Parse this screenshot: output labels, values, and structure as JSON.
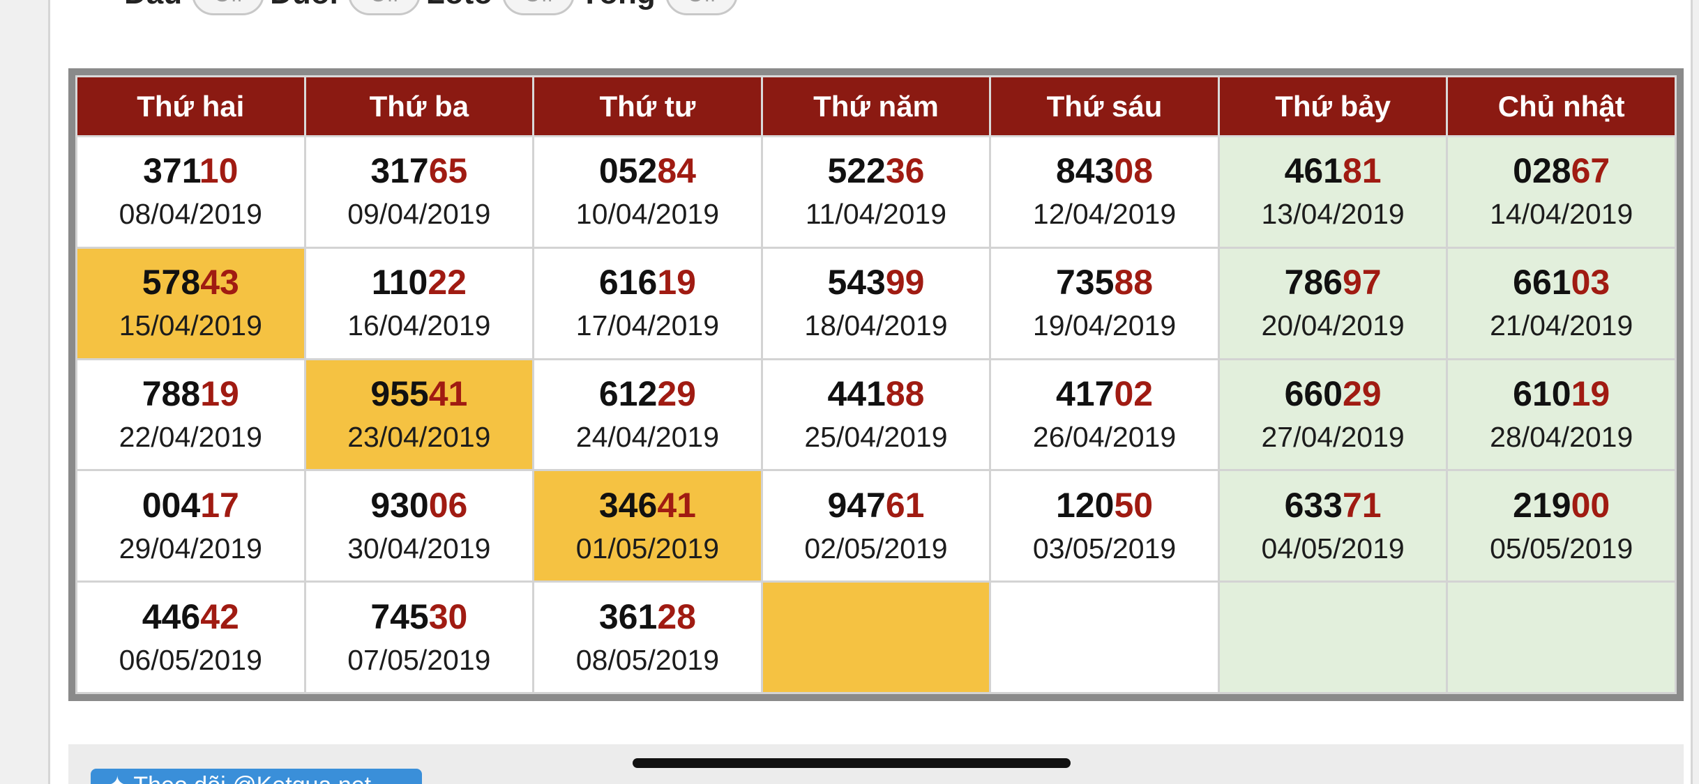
{
  "filters": [
    {
      "label": "Đầu",
      "value": "Off"
    },
    {
      "label": "Đuôi",
      "value": "Off"
    },
    {
      "label": "Loto",
      "value": "Off"
    },
    {
      "label": "Tổng",
      "value": "Off"
    }
  ],
  "calendar": {
    "headers": [
      "Thứ hai",
      "Thứ ba",
      "Thứ tư",
      "Thứ năm",
      "Thứ sáu",
      "Thứ bảy",
      "Chủ nhật"
    ],
    "rows": [
      [
        {
          "prefix": "371",
          "tail": "10",
          "date": "08/04/2019"
        },
        {
          "prefix": "317",
          "tail": "65",
          "date": "09/04/2019"
        },
        {
          "prefix": "052",
          "tail": "84",
          "date": "10/04/2019"
        },
        {
          "prefix": "522",
          "tail": "36",
          "date": "11/04/2019"
        },
        {
          "prefix": "843",
          "tail": "08",
          "date": "12/04/2019"
        },
        {
          "prefix": "461",
          "tail": "81",
          "date": "13/04/2019"
        },
        {
          "prefix": "028",
          "tail": "67",
          "date": "14/04/2019"
        }
      ],
      [
        {
          "prefix": "578",
          "tail": "43",
          "date": "15/04/2019",
          "highlight": true
        },
        {
          "prefix": "110",
          "tail": "22",
          "date": "16/04/2019"
        },
        {
          "prefix": "616",
          "tail": "19",
          "date": "17/04/2019"
        },
        {
          "prefix": "543",
          "tail": "99",
          "date": "18/04/2019"
        },
        {
          "prefix": "735",
          "tail": "88",
          "date": "19/04/2019"
        },
        {
          "prefix": "786",
          "tail": "97",
          "date": "20/04/2019"
        },
        {
          "prefix": "661",
          "tail": "03",
          "date": "21/04/2019"
        }
      ],
      [
        {
          "prefix": "788",
          "tail": "19",
          "date": "22/04/2019"
        },
        {
          "prefix": "955",
          "tail": "41",
          "date": "23/04/2019",
          "highlight": true
        },
        {
          "prefix": "612",
          "tail": "29",
          "date": "24/04/2019"
        },
        {
          "prefix": "441",
          "tail": "88",
          "date": "25/04/2019"
        },
        {
          "prefix": "417",
          "tail": "02",
          "date": "26/04/2019"
        },
        {
          "prefix": "660",
          "tail": "29",
          "date": "27/04/2019"
        },
        {
          "prefix": "610",
          "tail": "19",
          "date": "28/04/2019"
        }
      ],
      [
        {
          "prefix": "004",
          "tail": "17",
          "date": "29/04/2019"
        },
        {
          "prefix": "930",
          "tail": "06",
          "date": "30/04/2019"
        },
        {
          "prefix": "346",
          "tail": "41",
          "date": "01/05/2019",
          "highlight": true
        },
        {
          "prefix": "947",
          "tail": "61",
          "date": "02/05/2019"
        },
        {
          "prefix": "120",
          "tail": "50",
          "date": "03/05/2019"
        },
        {
          "prefix": "633",
          "tail": "71",
          "date": "04/05/2019"
        },
        {
          "prefix": "219",
          "tail": "00",
          "date": "05/05/2019"
        }
      ],
      [
        {
          "prefix": "446",
          "tail": "42",
          "date": "06/05/2019"
        },
        {
          "prefix": "745",
          "tail": "30",
          "date": "07/05/2019"
        },
        {
          "prefix": "361",
          "tail": "28",
          "date": "08/05/2019"
        },
        {
          "highlight": true
        },
        {},
        {},
        {}
      ]
    ]
  },
  "follow_button": {
    "label": "Theo dõi @Ketqua.net"
  },
  "colors": {
    "header_bg": "#8b1a12",
    "tail_digits": "#a01b12",
    "highlight": "#f5c242",
    "weekend": "#e2efdc"
  }
}
